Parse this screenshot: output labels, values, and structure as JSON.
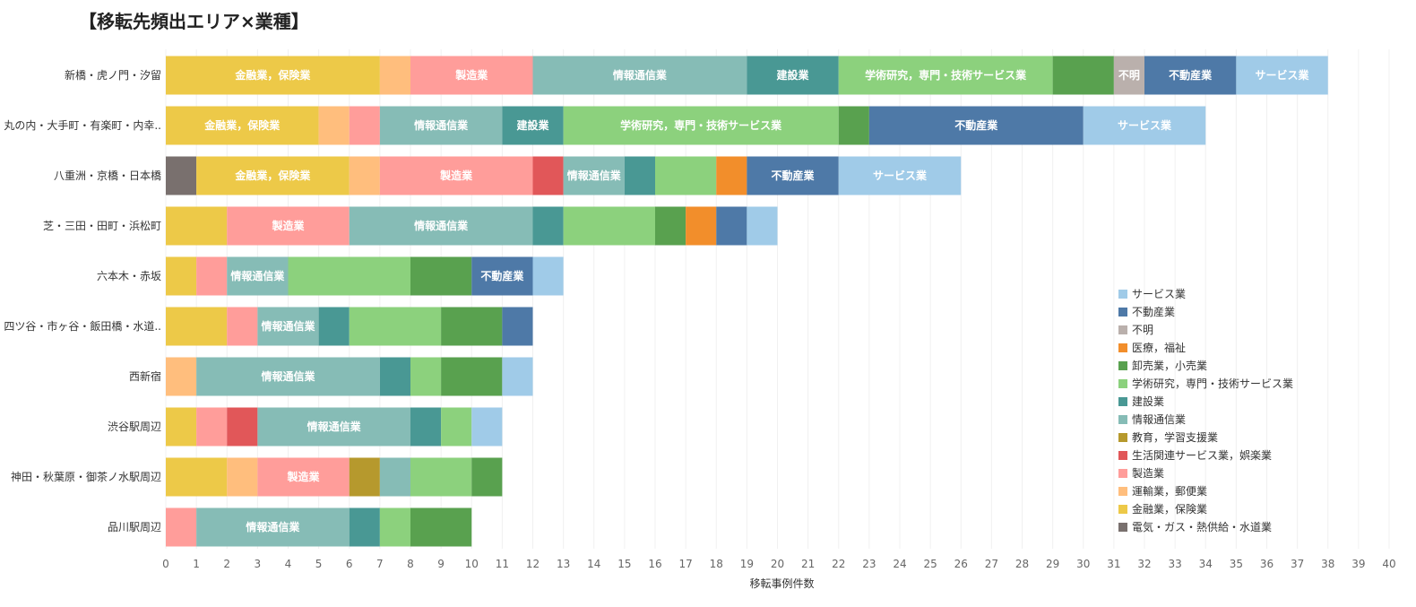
{
  "chart_data": {
    "type": "bar",
    "orientation": "horizontal",
    "stacked": true,
    "title": "【移転先頻出エリア×業種】",
    "xlabel": "移転事例件数",
    "ylabel": "",
    "xlim": [
      0,
      40
    ],
    "x_ticks": [
      "0",
      "1",
      "2",
      "3",
      "4",
      "5",
      "6",
      "7",
      "8",
      "9",
      "10",
      "11",
      "12",
      "13",
      "14",
      "15",
      "16",
      "17",
      "18",
      "19",
      "20",
      "21",
      "22",
      "23",
      "24",
      "25",
      "26",
      "27",
      "28",
      "29",
      "30",
      "31",
      "32",
      "33",
      "34",
      "35",
      "36",
      "37",
      "38",
      "39",
      "40"
    ],
    "grid": true,
    "legend_position": "right",
    "categories": [
      "新橋・虎ノ門・汐留",
      "丸の内・大手町・有楽町・内幸..",
      "八重洲・京橋・日本橋",
      "芝・三田・田町・浜松町",
      "六本木・赤坂",
      "四ツ谷・市ヶ谷・飯田橋・水道..",
      "西新宿",
      "渋谷駅周辺",
      "神田・秋葉原・御茶ノ水駅周辺",
      "品川駅周辺"
    ],
    "series": [
      {
        "name": "電気・ガス・熱供給・水道業",
        "color": "#79706e",
        "values": [
          0,
          0,
          1,
          0,
          0,
          0,
          0,
          0,
          0,
          0
        ]
      },
      {
        "name": "金融業，保険業",
        "color": "#edc948",
        "values": [
          7,
          5,
          5,
          2,
          1,
          2,
          0,
          1,
          2,
          0
        ]
      },
      {
        "name": "運輸業，郵便業",
        "color": "#ffbe7d",
        "values": [
          1,
          1,
          1,
          0,
          0,
          0,
          1,
          0,
          1,
          0
        ]
      },
      {
        "name": "製造業",
        "color": "#ff9d9a",
        "values": [
          4,
          1,
          5,
          4,
          1,
          1,
          0,
          1,
          3,
          1
        ]
      },
      {
        "name": "生活関連サービス業，娯楽業",
        "color": "#e15759",
        "values": [
          0,
          0,
          1,
          0,
          0,
          0,
          0,
          1,
          0,
          0
        ]
      },
      {
        "name": "教育，学習支援業",
        "color": "#b6992d",
        "values": [
          0,
          0,
          0,
          0,
          0,
          0,
          0,
          0,
          1,
          0
        ]
      },
      {
        "name": "情報通信業",
        "color": "#86bcb6",
        "values": [
          7,
          4,
          2,
          6,
          2,
          2,
          6,
          5,
          1,
          5
        ]
      },
      {
        "name": "建設業",
        "color": "#499894",
        "values": [
          3,
          2,
          1,
          1,
          0,
          1,
          1,
          1,
          0,
          1
        ]
      },
      {
        "name": "学術研究，専門・技術サービス業",
        "color": "#8cd17d",
        "values": [
          7,
          9,
          2,
          3,
          4,
          3,
          1,
          1,
          2,
          1
        ]
      },
      {
        "name": "卸売業，小売業",
        "color": "#59a14f",
        "values": [
          2,
          1,
          0,
          1,
          2,
          2,
          2,
          0,
          1,
          2
        ]
      },
      {
        "name": "医療，福祉",
        "color": "#f28e2b",
        "values": [
          0,
          0,
          1,
          1,
          0,
          0,
          0,
          0,
          0,
          0
        ]
      },
      {
        "name": "不明",
        "color": "#bab0ac",
        "values": [
          1,
          0,
          0,
          0,
          0,
          0,
          0,
          0,
          0,
          0
        ]
      },
      {
        "name": "不動産業",
        "color": "#4e79a7",
        "values": [
          3,
          7,
          3,
          1,
          2,
          1,
          0,
          0,
          0,
          0
        ]
      },
      {
        "name": "サービス業",
        "color": "#a0cbe8",
        "values": [
          3,
          4,
          4,
          1,
          1,
          0,
          1,
          1,
          0,
          0
        ]
      }
    ],
    "segment_labels": [
      [
        "",
        "金融業，保険業",
        "",
        "製造業",
        "",
        "",
        "情報通信業",
        "建設業",
        "学術研究，専門・技術サービス業",
        "",
        "",
        "不明",
        "不動産業",
        "サービス業"
      ],
      [
        "",
        "金融業，保険業",
        "",
        "",
        "",
        "",
        "情報通信業",
        "建設業",
        "学術研究，専門・技術サービス業",
        "",
        "",
        "",
        "不動産業",
        "サービス業"
      ],
      [
        "",
        "金融業，保険業",
        "",
        "製造業",
        "",
        "",
        "情報通信業",
        "",
        "",
        "",
        "",
        "",
        "不動産業",
        "サービス業"
      ],
      [
        "",
        "",
        "",
        "製造業",
        "",
        "",
        "情報通信業",
        "",
        "",
        "",
        "",
        "",
        "",
        ""
      ],
      [
        "",
        "",
        "",
        "",
        "",
        "",
        "情報通信業",
        "",
        "",
        "",
        "",
        "",
        "不動産業",
        ""
      ],
      [
        "",
        "",
        "",
        "",
        "",
        "",
        "情報通信業",
        "",
        "",
        "",
        "",
        "",
        "",
        ""
      ],
      [
        "",
        "",
        "",
        "",
        "",
        "",
        "情報通信業",
        "",
        "",
        "",
        "",
        "",
        "",
        ""
      ],
      [
        "",
        "",
        "",
        "",
        "",
        "",
        "情報通信業",
        "",
        "",
        "",
        "",
        "",
        "",
        ""
      ],
      [
        "",
        "",
        "",
        "製造業",
        "",
        "",
        "",
        "",
        "",
        "",
        "",
        "",
        "",
        ""
      ],
      [
        "",
        "",
        "",
        "",
        "",
        "",
        "情報通信業",
        "",
        "",
        "",
        "",
        "",
        "",
        ""
      ]
    ],
    "legend_order": [
      "サービス業",
      "不動産業",
      "不明",
      "医療，福祉",
      "卸売業，小売業",
      "学術研究，専門・技術サービス業",
      "建設業",
      "情報通信業",
      "教育，学習支援業",
      "生活関連サービス業，娯楽業",
      "製造業",
      "運輸業，郵便業",
      "金融業，保険業",
      "電気・ガス・熱供給・水道業"
    ]
  }
}
